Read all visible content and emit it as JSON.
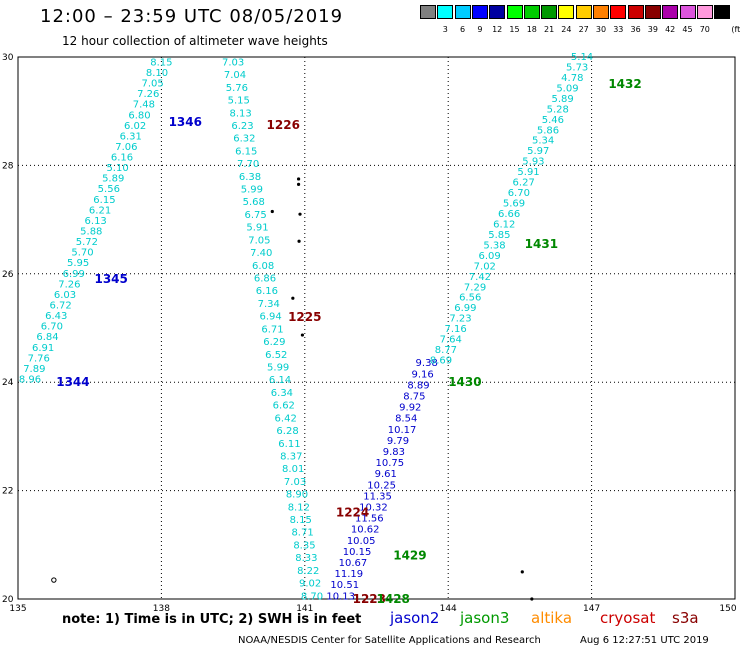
{
  "header": {
    "title": "12:00 – 23:59 UTC 08/05/2019",
    "subtitle": "12 hour collection of altimeter wave heights"
  },
  "legend": {
    "unit": "(ft)",
    "bins": [
      {
        "label": "",
        "color": "#808080"
      },
      {
        "label": "3",
        "color": "#00ffff"
      },
      {
        "label": "6",
        "color": "#00ccff"
      },
      {
        "label": "9",
        "color": "#0000ff"
      },
      {
        "label": "12",
        "color": "#0000a0"
      },
      {
        "label": "15",
        "color": "#00ff00"
      },
      {
        "label": "18",
        "color": "#00cc00"
      },
      {
        "label": "21",
        "color": "#009900"
      },
      {
        "label": "24",
        "color": "#ffff00"
      },
      {
        "label": "27",
        "color": "#ffcc00"
      },
      {
        "label": "30",
        "color": "#ff8000"
      },
      {
        "label": "33",
        "color": "#ff0000"
      },
      {
        "label": "36",
        "color": "#cc0000"
      },
      {
        "label": "39",
        "color": "#880000"
      },
      {
        "label": "42",
        "color": "#aa00aa"
      },
      {
        "label": "45",
        "color": "#dd55dd"
      },
      {
        "label": "70",
        "color": "#ff99dd"
      },
      {
        "label": "",
        "color": "#000000"
      }
    ]
  },
  "axes": {
    "x_ticks": [
      "135",
      "138",
      "141",
      "144",
      "147",
      "150"
    ],
    "y_ticks": [
      "20",
      "22",
      "24",
      "26",
      "28",
      "30"
    ],
    "lon_range": [
      135,
      150
    ],
    "lat_range": [
      20,
      30
    ]
  },
  "tracks": [
    {
      "id": "t1",
      "satellite": "jason2",
      "color": "#00cccc",
      "from": [
        135.25,
        24.05
      ],
      "to": [
        138.0,
        29.9
      ],
      "values": [
        "8.96",
        "7.89",
        "7.76",
        "6.91",
        "6.84",
        "6.70",
        "6.43",
        "6.72",
        "6.03",
        "7.26",
        "6.99",
        "5.95",
        "5.70",
        "5.72",
        "5.88",
        "6.13",
        "6.21",
        "6.15",
        "5.56",
        "5.89",
        "5.10",
        "6.16",
        "7.06",
        "6.31",
        "6.02",
        "6.80",
        "7.48",
        "7.26",
        "7.05",
        "8.10",
        "8.15"
      ]
    },
    {
      "id": "t2",
      "satellite": "jason2",
      "color": "#00cccc",
      "from": [
        139.5,
        29.9
      ],
      "to": [
        141.15,
        20.05
      ],
      "values": [
        "7.03",
        "7.04",
        "5.76",
        "5.15",
        "8.13",
        "6.23",
        "6.32",
        "6.15",
        "7.70",
        "6.38",
        "5.99",
        "5.68",
        "6.75",
        "5.91",
        "7.05",
        "7.40",
        "6.08",
        "6.86",
        "6.16",
        "7.34",
        "6.94",
        "6.71",
        "6.29",
        "6.52",
        "5.99",
        "6.14",
        "6.34",
        "6.62",
        "6.42",
        "6.28",
        "6.11",
        "8.37",
        "8.01",
        "7.03",
        "8.90",
        "8.12",
        "8.15",
        "8.71",
        "8.35",
        "8.33",
        "8.22",
        "9.02",
        "8.70"
      ]
    },
    {
      "id": "t3",
      "satellite": "jason2",
      "color": "#0000cc",
      "from": [
        141.75,
        20.05
      ],
      "to": [
        143.55,
        24.35
      ],
      "values": [
        "10.13",
        "10.51",
        "11.19",
        "10.67",
        "10.15",
        "10.05",
        "10.62",
        "11.56",
        "10.32",
        "11.35",
        "10.25",
        "9.61",
        "10.75",
        "9.83",
        "9.79",
        "10.17",
        "8.54",
        "9.92",
        "8.75",
        "8.89",
        "9.16",
        "9.38"
      ]
    },
    {
      "id": "t4",
      "satellite": "jason2",
      "color": "#00cccc",
      "from": [
        143.85,
        24.4
      ],
      "to": [
        146.8,
        30.0
      ],
      "values": [
        "8.69",
        "8.77",
        "7.64",
        "7.16",
        "7.23",
        "6.99",
        "6.56",
        "7.29",
        "7.42",
        "7.02",
        "6.09",
        "5.38",
        "5.85",
        "6.12",
        "6.66",
        "5.69",
        "6.70",
        "6.27",
        "5.91",
        "5.93",
        "5.97",
        "5.34",
        "5.86",
        "5.46",
        "5.28",
        "5.89",
        "5.09",
        "4.78",
        "5.73",
        "5.14"
      ]
    }
  ],
  "pass_labels": [
    {
      "text": "1346",
      "color": "#0000cc",
      "lon": 138.15,
      "lat": 28.8
    },
    {
      "text": "1345",
      "color": "#0000cc",
      "lon": 136.6,
      "lat": 25.9
    },
    {
      "text": "1344",
      "color": "#0000cc",
      "lon": 135.8,
      "lat": 24.0
    },
    {
      "text": "1226",
      "color": "#880000",
      "lon": 140.2,
      "lat": 28.75
    },
    {
      "text": "1225",
      "color": "#880000",
      "lon": 140.65,
      "lat": 25.2
    },
    {
      "text": "1224",
      "color": "#880000",
      "lon": 141.65,
      "lat": 21.6
    },
    {
      "text": "1223",
      "color": "#880000",
      "lon": 142.0,
      "lat": 20.0
    },
    {
      "text": "1432",
      "color": "#008800",
      "lon": 147.35,
      "lat": 29.5
    },
    {
      "text": "1431",
      "color": "#008800",
      "lon": 145.6,
      "lat": 26.55
    },
    {
      "text": "1430",
      "color": "#008800",
      "lon": 144.0,
      "lat": 24.0
    },
    {
      "text": "1429",
      "color": "#008800",
      "lon": 142.85,
      "lat": 20.8
    },
    {
      "text": "1428",
      "color": "#008800",
      "lon": 142.5,
      "lat": 20.0
    }
  ],
  "islands": [
    {
      "lon": 140.87,
      "lat": 27.75
    },
    {
      "lon": 140.87,
      "lat": 27.65
    },
    {
      "lon": 140.9,
      "lat": 27.1
    },
    {
      "lon": 140.88,
      "lat": 26.6
    },
    {
      "lon": 140.32,
      "lat": 27.15
    },
    {
      "lon": 140.75,
      "lat": 25.55
    },
    {
      "lon": 140.95,
      "lat": 24.87
    },
    {
      "lon": 145.55,
      "lat": 20.5
    },
    {
      "lon": 145.75,
      "lat": 20.0
    }
  ],
  "note": "note:  1) Time is in UTC;  2) SWH is in feet",
  "satellites": [
    {
      "name": "jason2",
      "color": "#0000cc"
    },
    {
      "name": "jason3",
      "color": "#009900"
    },
    {
      "name": "altika",
      "color": "#ff8c00"
    },
    {
      "name": "cryosat",
      "color": "#cc0000"
    },
    {
      "name": "s3a",
      "color": "#880000"
    }
  ],
  "footer": {
    "credit": "NOAA/NESDIS Center for Satellite Applications and Research",
    "timestamp": "Aug  6 12:27:51 UTC 2019"
  }
}
